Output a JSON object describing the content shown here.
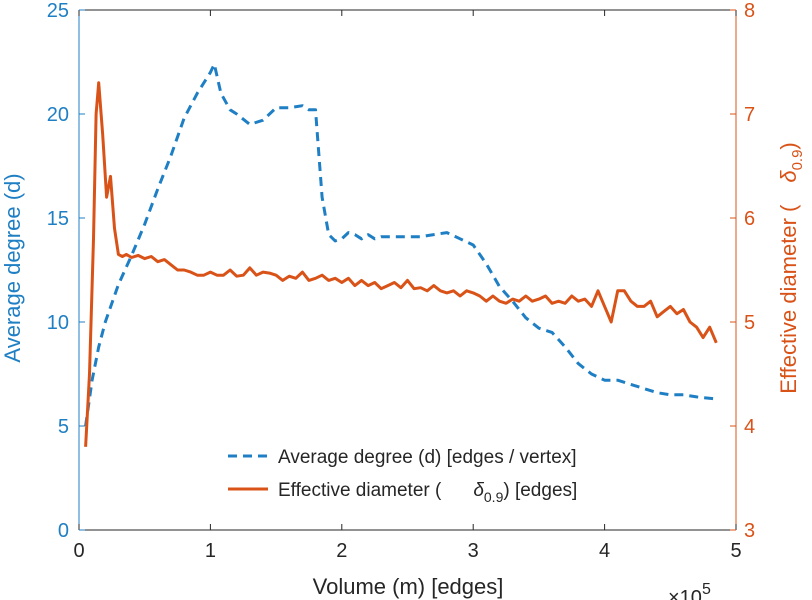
{
  "colors": {
    "left": "#1f7fc4",
    "right": "#d95319",
    "axis": "#262626",
    "background": "#ffffff"
  },
  "chart_data": {
    "type": "line",
    "x_multiplier_label": "×10",
    "x_multiplier_exp": "5",
    "xlabel": "Volume (m) [edges]",
    "xlim": [
      0,
      5
    ],
    "x_ticks": [
      0,
      1,
      2,
      3,
      4,
      5
    ],
    "y_left": {
      "label": "Average degree (d)",
      "lim": [
        0,
        25
      ],
      "ticks": [
        0,
        5,
        10,
        15,
        20,
        25
      ]
    },
    "y_right": {
      "label_prefix": "Effective diameter (",
      "label_symbol": "δ",
      "label_sub": "0.9",
      "label_suffix": ")",
      "lim": [
        3,
        8
      ],
      "ticks": [
        3,
        4,
        5,
        6,
        7,
        8
      ]
    },
    "series": [
      {
        "name": "Average degree (d) [edges / vertex]",
        "axis": "left",
        "style": "dashed",
        "x": [
          0.05,
          0.1,
          0.15,
          0.2,
          0.3,
          0.4,
          0.5,
          0.6,
          0.7,
          0.8,
          0.9,
          1.0,
          1.03,
          1.08,
          1.15,
          1.2,
          1.3,
          1.4,
          1.5,
          1.6,
          1.7,
          1.75,
          1.8,
          1.85,
          1.9,
          1.95,
          2.0,
          2.05,
          2.1,
          2.15,
          2.2,
          2.25,
          2.3,
          2.4,
          2.5,
          2.6,
          2.7,
          2.8,
          2.9,
          3.0,
          3.1,
          3.2,
          3.3,
          3.4,
          3.5,
          3.6,
          3.7,
          3.8,
          3.9,
          4.0,
          4.1,
          4.2,
          4.3,
          4.4,
          4.5,
          4.6,
          4.7,
          4.85
        ],
        "y": [
          5.0,
          7.2,
          8.8,
          10.0,
          11.8,
          13.2,
          14.7,
          16.4,
          18.0,
          19.8,
          21.0,
          22.0,
          22.4,
          21.0,
          20.2,
          20.0,
          19.5,
          19.7,
          20.3,
          20.3,
          20.4,
          20.2,
          20.2,
          16.0,
          14.2,
          13.9,
          14.0,
          14.3,
          14.2,
          14.0,
          14.2,
          14.0,
          14.1,
          14.1,
          14.1,
          14.1,
          14.2,
          14.3,
          14.0,
          13.7,
          12.8,
          11.7,
          11.0,
          10.2,
          9.7,
          9.5,
          8.8,
          8.0,
          7.5,
          7.2,
          7.2,
          7.0,
          6.8,
          6.6,
          6.5,
          6.5,
          6.4,
          6.3
        ]
      },
      {
        "name": "Effective diameter (",
        "name_symbol": "δ",
        "name_sub": "0.9",
        "name_suffix": ") [edges]",
        "axis": "right",
        "style": "solid",
        "x": [
          0.05,
          0.08,
          0.11,
          0.13,
          0.15,
          0.18,
          0.21,
          0.24,
          0.27,
          0.3,
          0.33,
          0.36,
          0.4,
          0.45,
          0.5,
          0.55,
          0.6,
          0.65,
          0.7,
          0.75,
          0.8,
          0.85,
          0.9,
          0.95,
          1.0,
          1.05,
          1.1,
          1.15,
          1.2,
          1.25,
          1.3,
          1.35,
          1.4,
          1.45,
          1.5,
          1.55,
          1.6,
          1.65,
          1.7,
          1.75,
          1.8,
          1.85,
          1.9,
          1.95,
          2.0,
          2.05,
          2.1,
          2.15,
          2.2,
          2.25,
          2.3,
          2.35,
          2.4,
          2.45,
          2.5,
          2.55,
          2.6,
          2.65,
          2.7,
          2.75,
          2.8,
          2.85,
          2.9,
          2.95,
          3.0,
          3.05,
          3.1,
          3.15,
          3.2,
          3.25,
          3.3,
          3.35,
          3.4,
          3.45,
          3.5,
          3.55,
          3.6,
          3.65,
          3.7,
          3.75,
          3.8,
          3.85,
          3.9,
          3.95,
          4.0,
          4.05,
          4.1,
          4.15,
          4.2,
          4.25,
          4.3,
          4.35,
          4.4,
          4.45,
          4.5,
          4.55,
          4.6,
          4.65,
          4.7,
          4.75,
          4.8,
          4.85
        ],
        "y": [
          3.8,
          4.5,
          5.8,
          7.0,
          7.3,
          6.8,
          6.2,
          6.4,
          5.9,
          5.65,
          5.63,
          5.65,
          5.62,
          5.64,
          5.61,
          5.63,
          5.58,
          5.6,
          5.55,
          5.5,
          5.5,
          5.48,
          5.45,
          5.45,
          5.48,
          5.45,
          5.45,
          5.5,
          5.44,
          5.45,
          5.52,
          5.45,
          5.48,
          5.47,
          5.45,
          5.4,
          5.44,
          5.42,
          5.48,
          5.4,
          5.42,
          5.45,
          5.4,
          5.42,
          5.38,
          5.42,
          5.35,
          5.4,
          5.35,
          5.38,
          5.32,
          5.35,
          5.38,
          5.33,
          5.4,
          5.32,
          5.33,
          5.3,
          5.35,
          5.3,
          5.28,
          5.3,
          5.25,
          5.3,
          5.28,
          5.25,
          5.2,
          5.25,
          5.2,
          5.18,
          5.22,
          5.2,
          5.25,
          5.2,
          5.22,
          5.25,
          5.18,
          5.2,
          5.18,
          5.25,
          5.2,
          5.22,
          5.15,
          5.3,
          5.15,
          5.0,
          5.3,
          5.3,
          5.2,
          5.15,
          5.15,
          5.2,
          5.05,
          5.1,
          5.15,
          5.08,
          5.12,
          5.0,
          4.95,
          4.85,
          4.95,
          4.8
        ]
      }
    ]
  }
}
